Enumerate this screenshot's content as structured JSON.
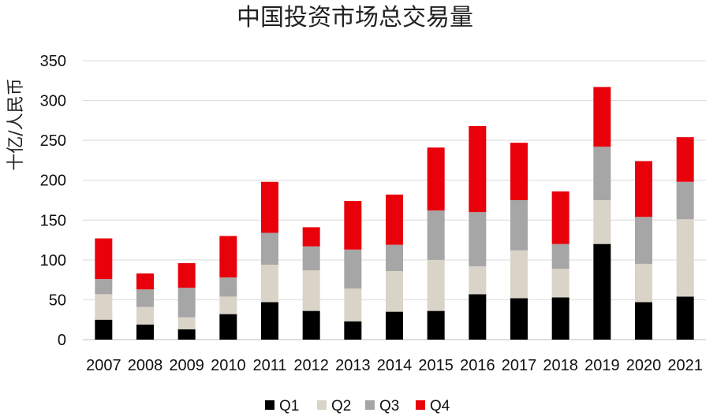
{
  "chart_data": {
    "type": "bar",
    "stacked": true,
    "title": "中国投资市场总交易量",
    "xlabel": "",
    "ylabel": "十亿/人民币",
    "ylim": [
      0,
      350
    ],
    "yticks": [
      0,
      50,
      100,
      150,
      200,
      250,
      300,
      350
    ],
    "grid": true,
    "legend_position": "bottom",
    "categories": [
      "2007",
      "2008",
      "2009",
      "2010",
      "2011",
      "2012",
      "2013",
      "2014",
      "2015",
      "2016",
      "2017",
      "2018",
      "2019",
      "2020",
      "2021"
    ],
    "series": [
      {
        "name": "Q1",
        "color": "#000000",
        "values": [
          25,
          19,
          13,
          32,
          47,
          36,
          23,
          35,
          36,
          57,
          52,
          53,
          120,
          47,
          54
        ]
      },
      {
        "name": "Q2",
        "color": "#d9d4c7",
        "values": [
          32,
          22,
          15,
          22,
          47,
          51,
          41,
          51,
          64,
          35,
          60,
          36,
          55,
          48,
          97
        ]
      },
      {
        "name": "Q3",
        "color": "#a6a6a6",
        "values": [
          19,
          22,
          37,
          24,
          40,
          30,
          49,
          33,
          62,
          68,
          63,
          31,
          67,
          59,
          47
        ]
      },
      {
        "name": "Q4",
        "color": "#e8000b",
        "values": [
          51,
          20,
          31,
          52,
          64,
          24,
          61,
          63,
          79,
          108,
          72,
          66,
          75,
          70,
          56
        ]
      }
    ]
  }
}
